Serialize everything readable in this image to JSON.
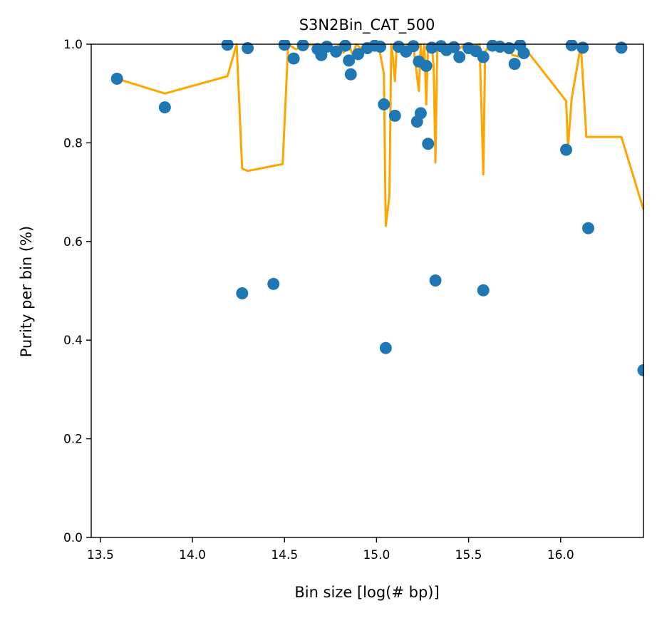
{
  "chart_data": {
    "type": "scatter",
    "title": "S3N2Bin_CAT_500",
    "xlabel": "Bin size [log(# bp)]",
    "ylabel": "Purity per bin (%)",
    "xlim": [
      13.45,
      16.45
    ],
    "ylim": [
      0.0,
      1.0
    ],
    "xticks": [
      "13.5",
      "14.0",
      "14.5",
      "15.0",
      "15.5",
      "16.0"
    ],
    "yticks": [
      "0.0",
      "0.2",
      "0.4",
      "0.6",
      "0.8",
      "1.0"
    ],
    "grid": false,
    "legend": "none",
    "series": [
      {
        "kind": "scatter",
        "color": "#1f77b4",
        "points": [
          [
            13.59,
            0.93
          ],
          [
            13.85,
            0.872
          ],
          [
            14.19,
            0.999
          ],
          [
            14.27,
            0.495
          ],
          [
            14.3,
            0.992
          ],
          [
            14.44,
            0.514
          ],
          [
            14.5,
            0.999
          ],
          [
            14.55,
            0.971
          ],
          [
            14.6,
            0.998
          ],
          [
            14.68,
            0.99
          ],
          [
            14.7,
            0.978
          ],
          [
            14.73,
            0.995
          ],
          [
            14.78,
            0.985
          ],
          [
            14.83,
            0.997
          ],
          [
            14.85,
            0.967
          ],
          [
            14.86,
            0.939
          ],
          [
            14.9,
            0.98
          ],
          [
            14.95,
            0.992
          ],
          [
            14.99,
            0.997
          ],
          [
            15.02,
            0.995
          ],
          [
            15.04,
            0.878
          ],
          [
            15.05,
            0.384
          ],
          [
            15.1,
            0.855
          ],
          [
            15.12,
            0.995
          ],
          [
            15.16,
            0.985
          ],
          [
            15.2,
            0.996
          ],
          [
            15.22,
            0.843
          ],
          [
            15.23,
            0.965
          ],
          [
            15.24,
            0.86
          ],
          [
            15.27,
            0.956
          ],
          [
            15.28,
            0.798
          ],
          [
            15.3,
            0.993
          ],
          [
            15.32,
            0.521
          ],
          [
            15.35,
            0.996
          ],
          [
            15.38,
            0.988
          ],
          [
            15.42,
            0.994
          ],
          [
            15.45,
            0.974
          ],
          [
            15.5,
            0.992
          ],
          [
            15.54,
            0.986
          ],
          [
            15.58,
            0.974
          ],
          [
            15.58,
            0.501
          ],
          [
            15.63,
            0.997
          ],
          [
            15.67,
            0.995
          ],
          [
            15.72,
            0.992
          ],
          [
            15.75,
            0.96
          ],
          [
            15.78,
            0.998
          ],
          [
            15.8,
            0.982
          ],
          [
            16.03,
            0.786
          ],
          [
            16.06,
            0.998
          ],
          [
            16.12,
            0.993
          ],
          [
            16.15,
            0.627
          ],
          [
            16.33,
            0.993
          ],
          [
            16.45,
            0.339
          ]
        ]
      },
      {
        "kind": "line",
        "color": "#ffa500",
        "points": [
          [
            13.59,
            0.93
          ],
          [
            13.85,
            0.9
          ],
          [
            14.19,
            0.935
          ],
          [
            14.24,
            1.0
          ],
          [
            14.27,
            0.748
          ],
          [
            14.3,
            0.743
          ],
          [
            14.49,
            0.757
          ],
          [
            14.52,
            1.0
          ],
          [
            14.56,
            0.99
          ],
          [
            14.6,
            0.994
          ],
          [
            14.64,
            0.998
          ],
          [
            14.68,
            1.0
          ],
          [
            14.71,
            0.988
          ],
          [
            14.74,
            1.0
          ],
          [
            14.77,
            0.99
          ],
          [
            14.8,
            1.0
          ],
          [
            14.82,
            0.983
          ],
          [
            14.85,
            1.0
          ],
          [
            14.87,
            0.978
          ],
          [
            14.89,
            1.0
          ],
          [
            14.92,
            0.99
          ],
          [
            14.95,
            1.0
          ],
          [
            14.98,
            0.988
          ],
          [
            15.01,
            1.0
          ],
          [
            15.04,
            0.94
          ],
          [
            15.05,
            0.632
          ],
          [
            15.07,
            0.692
          ],
          [
            15.08,
            1.0
          ],
          [
            15.09,
            0.97
          ],
          [
            15.1,
            0.925
          ],
          [
            15.11,
            1.0
          ],
          [
            15.14,
            0.99
          ],
          [
            15.17,
            1.0
          ],
          [
            15.2,
            0.995
          ],
          [
            15.22,
            0.935
          ],
          [
            15.23,
            0.905
          ],
          [
            15.24,
            1.0
          ],
          [
            15.25,
            0.958
          ],
          [
            15.26,
            1.0
          ],
          [
            15.27,
            0.878
          ],
          [
            15.28,
            1.0
          ],
          [
            15.3,
            1.0
          ],
          [
            15.31,
            0.955
          ],
          [
            15.32,
            0.76
          ],
          [
            15.33,
            1.0
          ],
          [
            15.36,
            0.99
          ],
          [
            15.4,
            1.0
          ],
          [
            15.44,
            0.988
          ],
          [
            15.48,
            1.0
          ],
          [
            15.52,
            0.995
          ],
          [
            15.56,
            1.0
          ],
          [
            15.58,
            0.736
          ],
          [
            15.59,
            0.985
          ],
          [
            15.62,
            1.0
          ],
          [
            15.66,
            0.992
          ],
          [
            15.7,
            0.995
          ],
          [
            15.74,
            0.978
          ],
          [
            15.77,
            0.975
          ],
          [
            15.78,
            1.0
          ],
          [
            15.81,
            0.99
          ],
          [
            16.03,
            0.885
          ],
          [
            16.04,
            0.79
          ],
          [
            16.06,
            0.89
          ],
          [
            16.11,
            0.998
          ],
          [
            16.14,
            0.812
          ],
          [
            16.33,
            0.812
          ],
          [
            16.45,
            0.665
          ]
        ]
      }
    ]
  }
}
